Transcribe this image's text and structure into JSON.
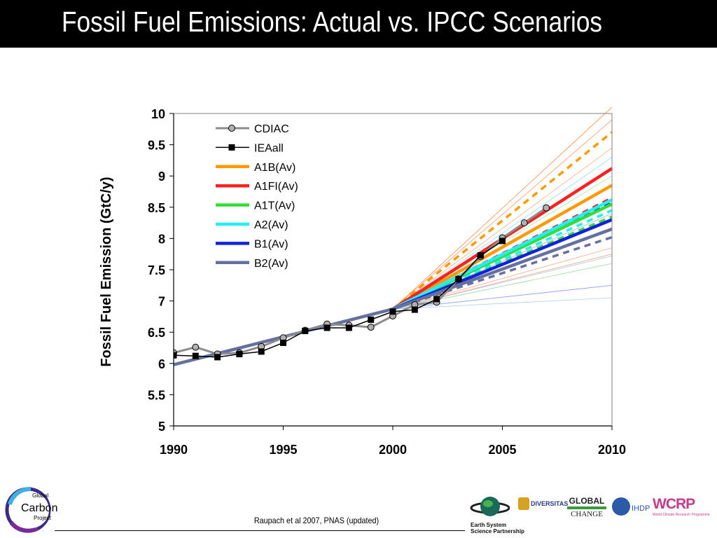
{
  "header": {
    "title": "Fossil Fuel Emissions: Actual vs. IPCC Scenarios"
  },
  "footer": {
    "citation": "Raupach et al 2007, PNAS (updated)",
    "logos": {
      "gcp": [
        "Global",
        "Carbon",
        "Project"
      ],
      "essp": [
        "Earth System",
        "Science Partnership"
      ],
      "diversitas": "DIVERSITAS",
      "igbp": [
        "GLOBAL",
        "CHANGE"
      ],
      "ihdp": "IHDP",
      "wcrp": "WCRP"
    }
  },
  "chart_data": {
    "type": "line",
    "title": "",
    "xlabel": "",
    "ylabel": "Fossil Fuel Emission (GtC/y)",
    "xlim": [
      1990,
      2010
    ],
    "ylim": [
      5,
      10
    ],
    "xticks": [
      "1990",
      "1995",
      "2000",
      "2005",
      "2010"
    ],
    "yticks": [
      "5",
      "5.5",
      "6",
      "6.5",
      "7",
      "7.5",
      "8",
      "8.5",
      "9",
      "9.5",
      "10"
    ],
    "legend_position": "top-left",
    "observed": [
      {
        "name": "CDIAC",
        "color": "#8c8c8c",
        "marker": "circle",
        "x": [
          1990,
          1991,
          1992,
          1993,
          1994,
          1995,
          1996,
          1997,
          1998,
          1999,
          2000,
          2001,
          2002,
          2003,
          2004,
          2005,
          2006,
          2007
        ],
        "y": [
          6.17,
          6.26,
          6.15,
          6.17,
          6.27,
          6.41,
          6.53,
          6.63,
          6.61,
          6.58,
          6.76,
          6.94,
          6.98,
          7.35,
          7.71,
          8.01,
          8.25,
          8.49
        ]
      },
      {
        "name": "IEAall",
        "color": "#000000",
        "marker": "square",
        "x": [
          1990,
          1991,
          1992,
          1993,
          1994,
          1995,
          1996,
          1997,
          1998,
          1999,
          2000,
          2001,
          2002,
          2003,
          2004,
          2005
        ],
        "y": [
          6.13,
          6.12,
          6.1,
          6.15,
          6.19,
          6.33,
          6.52,
          6.57,
          6.57,
          6.7,
          6.83,
          6.86,
          7.03,
          7.35,
          7.73,
          7.96
        ]
      }
    ],
    "scenarios": [
      {
        "name": "A1B(Av)",
        "color": "#ff9900",
        "solid_2010": 8.85,
        "dashed_2010": 9.7
      },
      {
        "name": "A1FI(Av)",
        "color": "#ff2020",
        "solid_2010": 9.12,
        "dashed_2010": 8.65
      },
      {
        "name": "A1T(Av)",
        "color": "#33dd33",
        "solid_2010": 8.55,
        "dashed_2010": 8.35
      },
      {
        "name": "A2(Av)",
        "color": "#22eeff",
        "solid_2010": 8.62,
        "dashed_2010": 8.45
      },
      {
        "name": "B1(Av)",
        "color": "#1122dd",
        "solid_2010": 8.3,
        "dashed_2010": 8.58
      },
      {
        "name": "B2(Av)",
        "color": "#6670a0",
        "solid_2010": 8.15,
        "dashed_2010": 8.02
      }
    ],
    "scenario_history": {
      "x": [
        1990,
        2000
      ],
      "y": [
        5.98,
        6.87
      ]
    }
  }
}
